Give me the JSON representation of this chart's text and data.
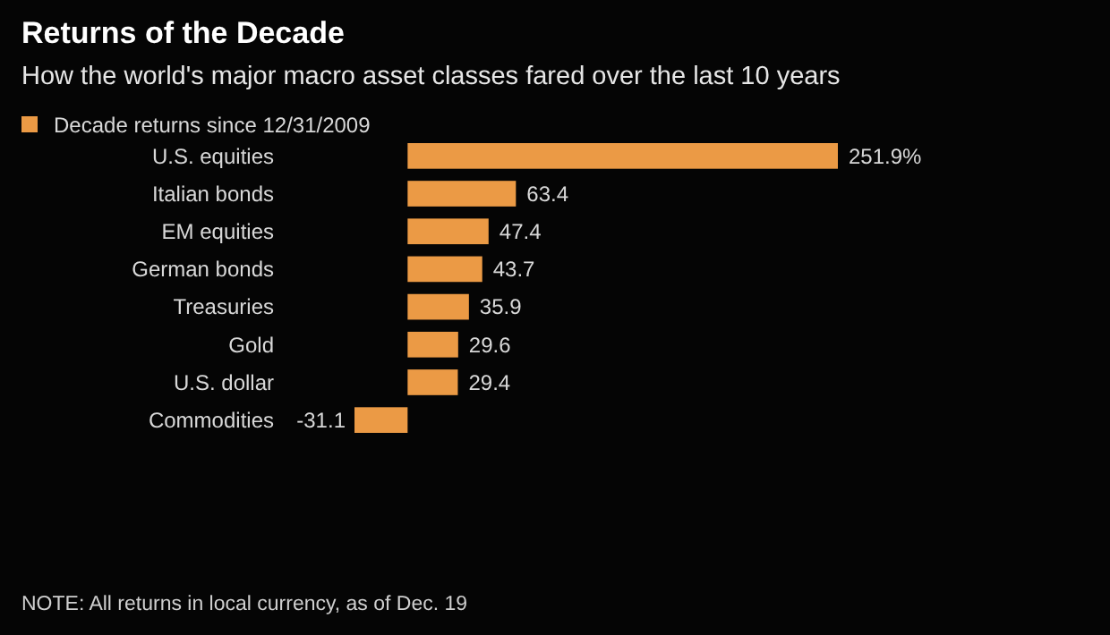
{
  "chart_data": {
    "type": "bar",
    "orientation": "horizontal",
    "title": "Returns of the Decade",
    "subtitle": "How the world's major macro asset classes fared over the last 10 years",
    "categories": [
      "U.S. equities",
      "Italian bonds",
      "EM equities",
      "German bonds",
      "Treasuries",
      "Gold",
      "U.S. dollar",
      "Commodities"
    ],
    "series": [
      {
        "name": "Decade returns since 12/31/2009",
        "color": "#eb9a45",
        "values": [
          251.9,
          63.4,
          47.4,
          43.7,
          35.9,
          29.6,
          29.4,
          -31.1
        ],
        "value_labels": [
          "251.9%",
          "63.4",
          "47.4",
          "43.7",
          "35.9",
          "29.6",
          "29.4",
          "-31.1"
        ]
      }
    ],
    "legend": "top left",
    "annotations": [
      "NOTE: All returns in local currency, as of Dec. 19"
    ]
  }
}
